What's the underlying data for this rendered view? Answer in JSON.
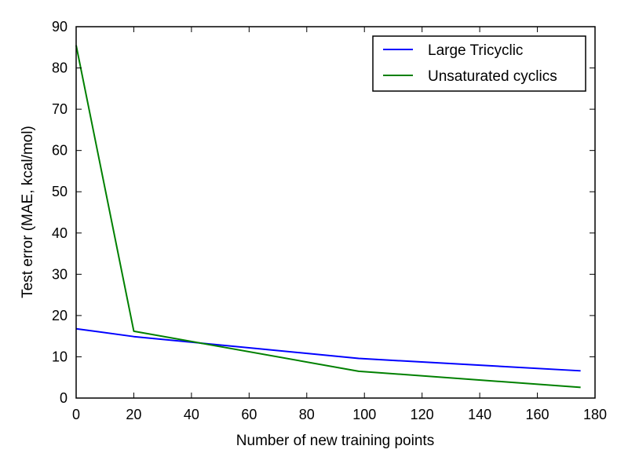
{
  "chart_data": {
    "type": "line",
    "title": "",
    "xlabel": "Number of new training points",
    "ylabel": "Test error (MAE, kcal/mol)",
    "xlim": [
      0,
      180
    ],
    "ylim": [
      0,
      90
    ],
    "xticks": [
      0,
      20,
      40,
      60,
      80,
      100,
      120,
      140,
      160,
      180
    ],
    "yticks": [
      0,
      10,
      20,
      30,
      40,
      50,
      60,
      70,
      80,
      90
    ],
    "grid": false,
    "legend_position": "top-right",
    "series": [
      {
        "name": "Large Tricyclic",
        "color": "#0000ff",
        "x": [
          0,
          20,
          98,
          175
        ],
        "y": [
          16.8,
          14.9,
          9.6,
          6.6
        ]
      },
      {
        "name": "Unsaturated cyclics",
        "color": "#008000",
        "x": [
          0,
          20,
          98,
          175
        ],
        "y": [
          85.5,
          16.2,
          6.5,
          2.6
        ]
      }
    ]
  }
}
